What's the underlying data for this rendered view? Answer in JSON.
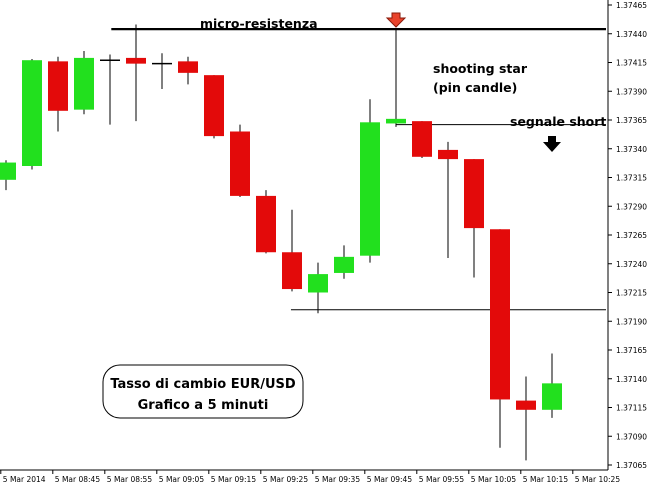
{
  "chart_data": {
    "type": "candlestick",
    "xlabel": "",
    "ylabel": "",
    "ylim": [
      1.37065,
      1.37465
    ],
    "y_ticks": [
      "1.37465",
      "1.37440",
      "1.37415",
      "1.37390",
      "1.37365",
      "1.37340",
      "1.37315",
      "1.37290",
      "1.37265",
      "1.37240",
      "1.37215",
      "1.37190",
      "1.37165",
      "1.37140",
      "1.37115",
      "1.37090",
      "1.37065"
    ],
    "x_ticks": [
      {
        "label": "5 Mar 2014",
        "candle": -0.2
      },
      {
        "label": "5 Mar 08:45",
        "candle": 1.8
      },
      {
        "label": "5 Mar 08:55",
        "candle": 3.8
      },
      {
        "label": "5 Mar 09:05",
        "candle": 5.8
      },
      {
        "label": "5 Mar 09:15",
        "candle": 7.8
      },
      {
        "label": "5 Mar 09:25",
        "candle": 9.8
      },
      {
        "label": "5 Mar 09:35",
        "candle": 11.8
      },
      {
        "label": "5 Mar 09:45",
        "candle": 13.8
      },
      {
        "label": "5 Mar 09:55",
        "candle": 15.8
      },
      {
        "label": "5 Mar 10:05",
        "candle": 17.8
      },
      {
        "label": "5 Mar 10:15",
        "candle": 19.8
      },
      {
        "label": "5 Mar 10:25",
        "candle": 21.8
      }
    ],
    "candles": [
      {
        "o": 1.37313,
        "h": 1.3733,
        "l": 1.37304,
        "c": 1.37328
      },
      {
        "o": 1.37325,
        "h": 1.37418,
        "l": 1.37322,
        "c": 1.37417
      },
      {
        "o": 1.37416,
        "h": 1.3742,
        "l": 1.37355,
        "c": 1.37373
      },
      {
        "o": 1.37374,
        "h": 1.37425,
        "l": 1.3737,
        "c": 1.37419
      },
      {
        "o": 1.37417,
        "h": 1.37422,
        "l": 1.37361,
        "c": 1.37417
      },
      {
        "o": 1.37419,
        "h": 1.37448,
        "l": 1.37364,
        "c": 1.37414
      },
      {
        "o": 1.37414,
        "h": 1.37423,
        "l": 1.37392,
        "c": 1.37414
      },
      {
        "o": 1.37416,
        "h": 1.3742,
        "l": 1.37396,
        "c": 1.37406
      },
      {
        "o": 1.37404,
        "h": 1.37404,
        "l": 1.37349,
        "c": 1.37351
      },
      {
        "o": 1.37355,
        "h": 1.37361,
        "l": 1.37298,
        "c": 1.37299
      },
      {
        "o": 1.37299,
        "h": 1.37304,
        "l": 1.37249,
        "c": 1.3725
      },
      {
        "o": 1.3725,
        "h": 1.37287,
        "l": 1.37216,
        "c": 1.37218
      },
      {
        "o": 1.37215,
        "h": 1.37241,
        "l": 1.37197,
        "c": 1.37231
      },
      {
        "o": 1.37232,
        "h": 1.37256,
        "l": 1.37227,
        "c": 1.37246
      },
      {
        "o": 1.37247,
        "h": 1.37383,
        "l": 1.37241,
        "c": 1.37363
      },
      {
        "o": 1.37362,
        "h": 1.37445,
        "l": 1.37359,
        "c": 1.37366
      },
      {
        "o": 1.37364,
        "h": 1.37364,
        "l": 1.37332,
        "c": 1.37333
      },
      {
        "o": 1.37339,
        "h": 1.37346,
        "l": 1.37245,
        "c": 1.37331
      },
      {
        "o": 1.37331,
        "h": 1.37331,
        "l": 1.37228,
        "c": 1.37271
      },
      {
        "o": 1.3727,
        "h": 1.3727,
        "l": 1.3708,
        "c": 1.37122
      },
      {
        "o": 1.37121,
        "h": 1.37142,
        "l": 1.37069,
        "c": 1.37113
      },
      {
        "o": 1.37113,
        "h": 1.37162,
        "l": 1.37106,
        "c": 1.37136
      }
    ],
    "levels": {
      "micro_resistance": 1.37444,
      "short_signal": 1.37361,
      "support": 1.372
    },
    "colors": {
      "bull": "#22e01e",
      "bear": "#e30a0a",
      "wick": "#000000",
      "arrow_red": "#e8432c",
      "arrow_black": "#000000"
    }
  },
  "annotations": {
    "micro_resistenza": "micro-resistenza",
    "shooting_star_line1": "shooting star",
    "shooting_star_line2": "(pin candle)",
    "segnale_short": "segnale short",
    "info_line1": "Tasso di cambio EUR/USD",
    "info_line2": "Grafico a 5 minuti"
  }
}
